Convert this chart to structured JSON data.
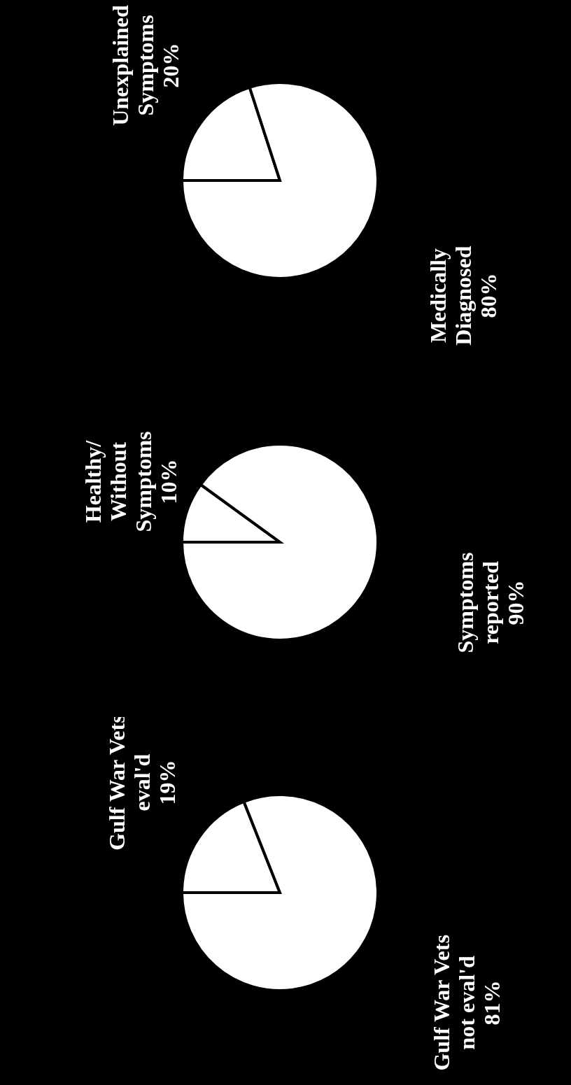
{
  "chart_data": [
    {
      "type": "pie",
      "categories": [
        "Gulf War Vets eval'd",
        "Gulf War Vets not eval'd"
      ],
      "values": [
        19,
        81
      ],
      "colors": [
        "#ffffff",
        "#ffffff"
      ],
      "value_labels": [
        "19%",
        "81%"
      ]
    },
    {
      "type": "pie",
      "categories": [
        "Healthy/ Without Symptoms",
        "Symptoms reported"
      ],
      "values": [
        10,
        90
      ],
      "colors": [
        "#ffffff",
        "#ffffff"
      ],
      "value_labels": [
        "10%",
        "90%"
      ]
    },
    {
      "type": "pie",
      "categories": [
        "Unexplained Symptoms",
        "Medically Diagnosed"
      ],
      "values": [
        20,
        80
      ],
      "colors": [
        "#ffffff",
        "#ffffff"
      ],
      "value_labels": [
        "20%",
        "80%"
      ]
    }
  ]
}
